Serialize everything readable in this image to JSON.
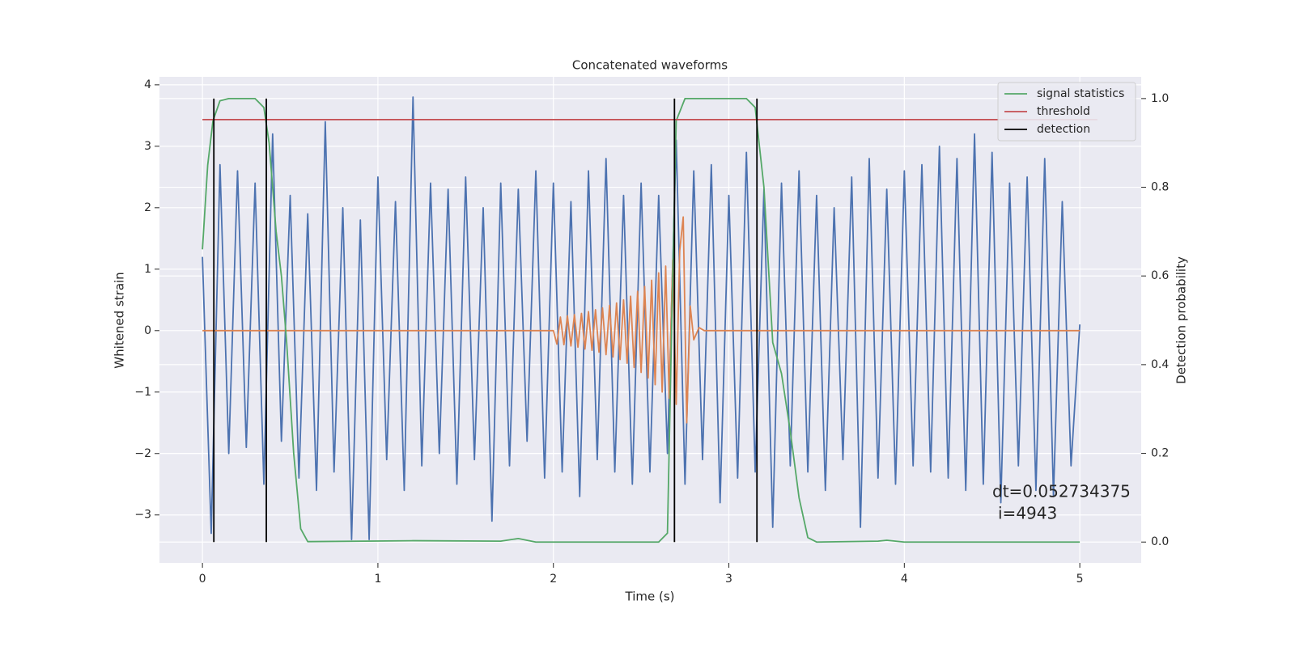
{
  "chart_data": {
    "type": "line",
    "title": "Concatenated waveforms",
    "xlabel": "Time (s)",
    "ylabel": "Whitened strain",
    "y2label": "Detection probability",
    "xlim": [
      -0.245,
      5.35
    ],
    "ylim": [
      -3.78,
      4.13
    ],
    "y2lim": [
      -0.047,
      1.049
    ],
    "xticks": [
      0,
      1,
      2,
      3,
      4,
      5
    ],
    "yticks": [
      {
        "value": -3,
        "label": "−3"
      },
      {
        "value": -2,
        "label": "−2"
      },
      {
        "value": -1,
        "label": "−1"
      },
      0,
      1,
      2,
      3,
      4
    ],
    "y2ticks": [
      {
        "value": 0,
        "label": "0.0"
      },
      0.2,
      0.4,
      0.6,
      0.8,
      {
        "value": 1,
        "label": "1.0"
      }
    ],
    "grid": true,
    "legend": "upper right",
    "series": [
      {
        "color": "#4c72b0",
        "axis": "y",
        "x": [
          0,
          0.05,
          0.1,
          0.15,
          0.2,
          0.25,
          0.3,
          0.35,
          0.4,
          0.45,
          0.5,
          0.55,
          0.6,
          0.65,
          0.7,
          0.75,
          0.8,
          0.85,
          0.9,
          0.95,
          1.0,
          1.05,
          1.1,
          1.15,
          1.2,
          1.25,
          1.3,
          1.35,
          1.4,
          1.45,
          1.5,
          1.55,
          1.6,
          1.65,
          1.7,
          1.75,
          1.8,
          1.85,
          1.9,
          1.95,
          2.0,
          2.05,
          2.1,
          2.15,
          2.2,
          2.25,
          2.3,
          2.35,
          2.4,
          2.45,
          2.5,
          2.55,
          2.6,
          2.65,
          2.7,
          2.75,
          2.8,
          2.85,
          2.9,
          2.95,
          3.0,
          3.05,
          3.1,
          3.15,
          3.2,
          3.25,
          3.3,
          3.35,
          3.4,
          3.45,
          3.5,
          3.55,
          3.6,
          3.65,
          3.7,
          3.75,
          3.8,
          3.85,
          3.9,
          3.95,
          4.0,
          4.05,
          4.1,
          4.15,
          4.2,
          4.25,
          4.3,
          4.35,
          4.4,
          4.45,
          4.5,
          4.55,
          4.6,
          4.65,
          4.7,
          4.75,
          4.8,
          4.85,
          4.9,
          4.95,
          5.0
        ],
        "values": [
          1.2,
          -3.3,
          2.7,
          -2.0,
          2.6,
          -1.9,
          2.4,
          -2.5,
          3.2,
          -1.8,
          2.2,
          -2.4,
          1.9,
          -2.6,
          3.4,
          -2.3,
          2.0,
          -3.4,
          1.8,
          -3.4,
          2.5,
          -2.1,
          2.1,
          -2.6,
          3.8,
          -2.2,
          2.4,
          -2.0,
          2.3,
          -2.5,
          2.5,
          -2.1,
          2.0,
          -3.1,
          2.4,
          -2.2,
          2.3,
          -1.8,
          2.6,
          -2.4,
          2.4,
          -2.3,
          2.1,
          -2.7,
          2.6,
          -2.1,
          2.8,
          -2.3,
          2.2,
          -2.5,
          2.4,
          -2.3,
          2.2,
          -2.0,
          3.1,
          -2.5,
          2.6,
          -2.1,
          2.7,
          -2.8,
          2.2,
          -2.4,
          2.9,
          -2.3,
          2.3,
          -3.2,
          2.4,
          -2.2,
          2.6,
          -2.3,
          2.2,
          -2.6,
          2.0,
          -2.1,
          2.5,
          -3.2,
          2.8,
          -2.4,
          2.3,
          -2.5,
          2.6,
          -2.2,
          2.7,
          -2.3,
          3.0,
          -2.4,
          2.8,
          -2.6,
          3.2,
          -2.5,
          2.9,
          -2.8,
          2.4,
          -2.2,
          2.5,
          -2.6,
          2.8,
          -2.7,
          2.1,
          -2.2,
          0.1
        ]
      },
      {
        "color": "#dd8452",
        "axis": "y",
        "x": [
          0,
          2.0,
          2.02,
          2.04,
          2.06,
          2.08,
          2.1,
          2.12,
          2.14,
          2.16,
          2.18,
          2.2,
          2.22,
          2.24,
          2.26,
          2.28,
          2.3,
          2.32,
          2.34,
          2.36,
          2.38,
          2.4,
          2.42,
          2.44,
          2.46,
          2.48,
          2.5,
          2.52,
          2.54,
          2.56,
          2.58,
          2.6,
          2.62,
          2.64,
          2.66,
          2.68,
          2.7,
          2.72,
          2.74,
          2.76,
          2.78,
          2.8,
          2.83,
          2.86,
          5.0
        ],
        "values": [
          0,
          0,
          -0.22,
          0.22,
          -0.23,
          0.24,
          -0.25,
          0.26,
          -0.27,
          0.28,
          -0.3,
          0.31,
          -0.32,
          0.34,
          -0.35,
          0.37,
          -0.39,
          0.41,
          -0.43,
          0.45,
          -0.47,
          0.5,
          -0.53,
          0.56,
          -0.6,
          0.64,
          -0.68,
          0.72,
          -0.77,
          0.82,
          -0.88,
          0.94,
          -1.0,
          1.05,
          -1.1,
          1.15,
          -1.2,
          1.3,
          1.85,
          -1.5,
          0.4,
          -0.15,
          0.05,
          0,
          0
        ]
      },
      {
        "name": "signal statistics",
        "color": "#55a868",
        "axis": "y2",
        "x": [
          0,
          0.03,
          0.06,
          0.1,
          0.15,
          0.3,
          0.35,
          0.38,
          0.42,
          0.45,
          0.48,
          0.52,
          0.56,
          0.6,
          1.2,
          1.7,
          1.8,
          1.9,
          2.6,
          2.65,
          2.68,
          2.7,
          2.75,
          3.1,
          3.15,
          3.2,
          3.25,
          3.3,
          3.35,
          3.4,
          3.45,
          3.5,
          3.85,
          3.9,
          4.0,
          5.0
        ],
        "values": [
          0.66,
          0.85,
          0.95,
          0.995,
          1.0,
          1.0,
          0.98,
          0.9,
          0.7,
          0.6,
          0.45,
          0.2,
          0.03,
          0.001,
          0.003,
          0.002,
          0.008,
          0.0,
          0.0,
          0.02,
          0.6,
          0.95,
          1.0,
          1.0,
          0.98,
          0.8,
          0.45,
          0.38,
          0.25,
          0.1,
          0.01,
          0.0,
          0.002,
          0.004,
          0.0,
          0.0
        ]
      },
      {
        "name": "threshold",
        "color": "#c44e52",
        "axis": "y2",
        "x": [
          0,
          5.1
        ],
        "values": [
          0.9526,
          0.9526
        ]
      }
    ],
    "detection": {
      "name": "detection",
      "color": "#000000",
      "x": [
        0.065,
        0.364,
        2.69,
        3.16
      ],
      "ylim": [
        0,
        1
      ]
    },
    "annotation": [
      "dt=0.052734375",
      "i=4943"
    ]
  }
}
